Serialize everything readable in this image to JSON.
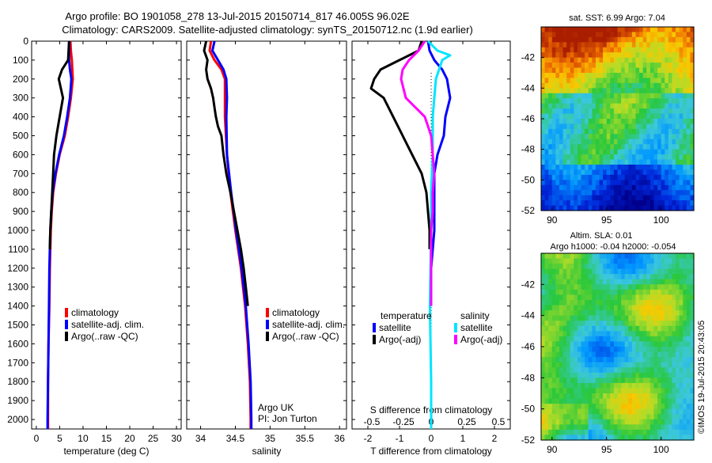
{
  "title_line1": "Argo profile: BO 1901058_278 13-Jul-2015 20150714_817 46.005S 96.02E",
  "title_line2": "Climatology: CARS2009. Satellite-adjusted climatology: synTS_20150712.nc (1.9d earlier)",
  "depth_ticks": [
    0,
    100,
    200,
    300,
    400,
    500,
    600,
    700,
    800,
    900,
    1000,
    1100,
    1200,
    1300,
    1400,
    1500,
    1600,
    1700,
    1800,
    1900,
    2000
  ],
  "colors": {
    "climatology": "#ff0000",
    "satellite": "#0000ff",
    "argo": "#000000",
    "sal_sat": "#00e5ff",
    "sal_argo": "#ff00ff"
  },
  "chart_data": [
    {
      "type": "line",
      "xlabel": "temperature (deg C)",
      "ylim": [
        2050,
        0
      ],
      "xlim": [
        -1,
        31
      ],
      "xticks": [
        0,
        5,
        10,
        15,
        20,
        25,
        30
      ],
      "legend": [
        "climatology",
        "satellite-adj. clim.",
        "Argo(..raw -QC)"
      ],
      "series": [
        {
          "name": "climatology",
          "y": [
            0,
            50,
            100,
            150,
            200,
            300,
            400,
            500,
            600,
            700,
            800,
            900,
            1000,
            1200,
            1400,
            1600,
            1800,
            2000,
            2050
          ],
          "x": [
            7.3,
            7.4,
            7.6,
            7.7,
            7.8,
            7.4,
            6.8,
            6.1,
            5.0,
            4.2,
            3.6,
            3.3,
            3.1,
            2.9,
            2.8,
            2.6,
            2.5,
            2.5,
            2.5
          ]
        },
        {
          "name": "satellite-adj. clim.",
          "y": [
            0,
            50,
            100,
            150,
            200,
            300,
            400,
            500,
            600,
            700,
            800,
            900,
            1000,
            1200,
            1400,
            1600,
            1800,
            2000,
            2050
          ],
          "x": [
            7.1,
            7.0,
            7.0,
            7.2,
            7.5,
            7.2,
            6.6,
            5.9,
            4.9,
            4.1,
            3.5,
            3.2,
            3.0,
            2.8,
            2.7,
            2.6,
            2.5,
            2.4,
            2.4
          ]
        },
        {
          "name": "Argo(..raw -QC)",
          "y": [
            0,
            100,
            150,
            200,
            300,
            400,
            500,
            600,
            700,
            800,
            900,
            1000,
            1100
          ],
          "x": [
            7.0,
            6.8,
            5.5,
            4.8,
            5.7,
            5.0,
            4.3,
            3.8,
            3.6,
            3.4,
            3.2,
            3.0,
            2.9
          ]
        }
      ]
    },
    {
      "type": "line",
      "xlabel": "salinity",
      "ylim": [
        2050,
        0
      ],
      "xlim": [
        33.8,
        36.1
      ],
      "xticks": [
        34,
        34.5,
        35,
        35.5,
        36
      ],
      "legend": [
        "climatology",
        "satellite-adj. clim.",
        "Argo(..raw -QC)"
      ],
      "annotations": [
        "Argo UK",
        "PI: Jon Turton"
      ],
      "series": [
        {
          "name": "climatology",
          "y": [
            0,
            50,
            100,
            150,
            200,
            300,
            400,
            600,
            800,
            1000,
            1200,
            1400,
            1600,
            1800,
            2000,
            2050
          ],
          "x": [
            34.15,
            34.13,
            34.2,
            34.3,
            34.35,
            34.35,
            34.35,
            34.38,
            34.43,
            34.5,
            34.58,
            34.64,
            34.68,
            34.71,
            34.72,
            34.72
          ]
        },
        {
          "name": "satellite-adj. clim.",
          "y": [
            0,
            50,
            100,
            150,
            200,
            300,
            400,
            600,
            800,
            1000,
            1200,
            1400,
            1600,
            1800,
            2000,
            2050
          ],
          "x": [
            34.2,
            34.17,
            34.25,
            34.33,
            34.37,
            34.38,
            34.37,
            34.38,
            34.44,
            34.51,
            34.59,
            34.65,
            34.69,
            34.72,
            34.73,
            34.73
          ]
        },
        {
          "name": "Argo(..raw -QC)",
          "y": [
            0,
            50,
            100,
            150,
            200,
            250,
            300,
            350,
            400,
            450,
            500,
            600,
            700,
            800,
            900,
            1000,
            1100,
            1200,
            1300,
            1400
          ],
          "x": [
            34.08,
            34.05,
            34.1,
            34.08,
            34.1,
            34.15,
            34.18,
            34.2,
            34.22,
            34.25,
            34.3,
            34.33,
            34.37,
            34.43,
            34.48,
            34.53,
            34.58,
            34.62,
            34.65,
            34.68
          ]
        }
      ]
    },
    {
      "type": "line",
      "xlabel": "T difference from climatology",
      "xlabel_top": "S difference from climatology",
      "ylim": [
        2050,
        0
      ],
      "xlim": [
        -2.5,
        2.5
      ],
      "xticks": [
        -2,
        -1,
        0,
        1,
        2
      ],
      "xticks_top": [
        "-0.5",
        "-0.25",
        "0",
        "0.25",
        "0.5"
      ],
      "legend_temperature_title": "temperature",
      "legend_salinity_title": "salinity",
      "legend": [
        "satellite",
        "Argo(-adj)",
        "satellite",
        "Argo(-adj)"
      ],
      "series": [
        {
          "name": "temperature satellite",
          "y": [
            0,
            50,
            100,
            150,
            200,
            300,
            400,
            500,
            600,
            700,
            800,
            900,
            1000,
            1100,
            1200
          ],
          "x": [
            -0.1,
            -0.05,
            0.1,
            0.35,
            0.5,
            0.6,
            0.45,
            0.4,
            0.2,
            0.1,
            0.1,
            0.1,
            0.1,
            0.05,
            0.0
          ]
        },
        {
          "name": "temperature Argo(-adj)",
          "y": [
            0,
            50,
            100,
            150,
            200,
            250,
            300,
            400,
            500,
            600,
            700,
            800,
            900,
            1000,
            1100
          ],
          "x": [
            -0.3,
            -0.4,
            -1.0,
            -1.6,
            -1.8,
            -1.9,
            -1.5,
            -1.2,
            -0.9,
            -0.6,
            -0.3,
            -0.15,
            -0.1,
            -0.05,
            -0.05
          ]
        },
        {
          "name": "salinity satellite",
          "y": [
            0,
            50,
            75,
            100,
            150,
            200,
            300,
            400,
            600,
            800,
            1000,
            1200,
            1400,
            1600,
            1800,
            2000,
            2050
          ],
          "x": [
            -0.1,
            0.2,
            0.6,
            0.35,
            0.25,
            0.15,
            0.1,
            0.05,
            0.05,
            0.0,
            0.0,
            -0.02,
            -0.04,
            -0.02,
            0.0,
            0.0,
            0.0
          ]
        },
        {
          "name": "salinity Argo(-adj)",
          "y": [
            0,
            50,
            100,
            150,
            200,
            300,
            400,
            500,
            600,
            700,
            800,
            900,
            1000,
            1100,
            1200,
            1300,
            1400
          ],
          "x": [
            -0.2,
            -0.4,
            -0.7,
            -0.9,
            -0.95,
            -0.8,
            -0.2,
            0.0,
            0.05,
            0.1,
            0.05,
            0.05,
            0.0,
            0.0,
            0.0,
            0.0,
            0.0
          ]
        }
      ]
    },
    {
      "type": "heatmap",
      "title": "sat. SST: 6.99 Argo: 7.04",
      "xticks": [
        90,
        95,
        100
      ],
      "yticks": [
        -42,
        -44,
        -46,
        -48,
        -50,
        -52
      ],
      "xlim": [
        89,
        103
      ],
      "ylim": [
        -52,
        -40
      ]
    },
    {
      "type": "heatmap",
      "title_line1": "Altim. SLA: 0.01",
      "title_line2": "Argo h1000: -0.04 h2000: -0.054",
      "xticks": [
        90,
        95,
        100
      ],
      "yticks": [
        -42,
        -44,
        -46,
        -48,
        -50,
        -52
      ],
      "xlim": [
        89,
        103
      ],
      "ylim": [
        -52,
        -40
      ]
    }
  ],
  "credit": "©IMOS 19-Jul-2015 20:43:05"
}
